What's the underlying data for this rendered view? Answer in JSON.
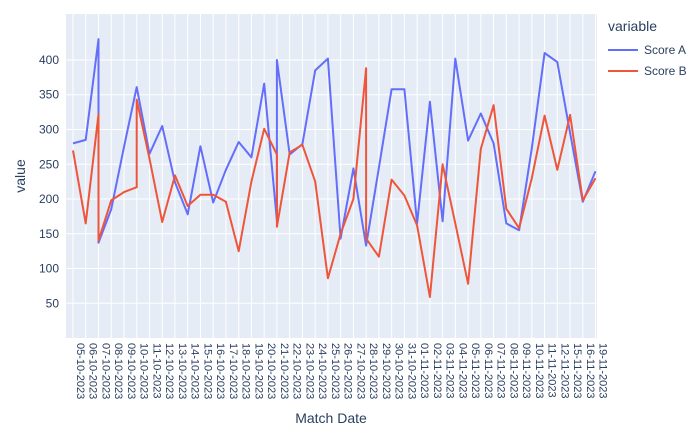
{
  "chart_data": {
    "type": "line",
    "title": "",
    "xlabel": "Match Date",
    "ylabel": "value",
    "legend_title": "variable",
    "x_categories": [
      "05-10-2023",
      "06-10-2023",
      "07-10-2023",
      "08-10-2023",
      "09-10-2023",
      "10-10-2023",
      "11-10-2023",
      "12-10-2023",
      "13-10-2023",
      "14-10-2023",
      "15-10-2023",
      "16-10-2023",
      "17-10-2023",
      "18-10-2023",
      "19-10-2023",
      "20-10-2023",
      "21-10-2023",
      "22-10-2023",
      "23-10-2023",
      "24-10-2023",
      "25-10-2023",
      "26-10-2023",
      "27-10-2023",
      "28-10-2023",
      "29-10-2023",
      "30-10-2023",
      "31-10-2023",
      "01-11-2023",
      "02-11-2023",
      "03-11-2023",
      "04-11-2023",
      "05-11-2023",
      "06-11-2023",
      "07-11-2023",
      "08-11-2023",
      "09-11-2023",
      "10-11-2023",
      "11-11-2023",
      "12-11-2023",
      "15-11-2023",
      "16-11-2023",
      "19-11-2023"
    ],
    "y_ticks": [
      50,
      100,
      150,
      200,
      250,
      300,
      350,
      400
    ],
    "ylim": [
      0,
      466
    ],
    "grid": true,
    "legend_position": "right",
    "plot_bg": "#E5ECF6",
    "grid_color": "#FFFFFF",
    "text_color": "#2a3f5f",
    "series": [
      {
        "name": "Score A",
        "color": "#636EFA",
        "points": [
          [
            "05-10-2023",
            280
          ],
          [
            "06-10-2023",
            285
          ],
          [
            "07-10-2023",
            430
          ],
          [
            "07-10-2023",
            137
          ],
          [
            "08-10-2023",
            185
          ],
          [
            "09-10-2023",
            275
          ],
          [
            "10-10-2023",
            361
          ],
          [
            "11-10-2023",
            265
          ],
          [
            "12-10-2023",
            305
          ],
          [
            "13-10-2023",
            224
          ],
          [
            "14-10-2023",
            178
          ],
          [
            "15-10-2023",
            276
          ],
          [
            "16-10-2023",
            195
          ],
          [
            "17-10-2023",
            242
          ],
          [
            "18-10-2023",
            282
          ],
          [
            "19-10-2023",
            260
          ],
          [
            "20-10-2023",
            366
          ],
          [
            "21-10-2023",
            169
          ],
          [
            "21-10-2023",
            400
          ],
          [
            "22-10-2023",
            264
          ],
          [
            "23-10-2023",
            279
          ],
          [
            "24-10-2023",
            385
          ],
          [
            "25-10-2023",
            402
          ],
          [
            "26-10-2023",
            143
          ],
          [
            "27-10-2023",
            244
          ],
          [
            "28-10-2023",
            133
          ],
          [
            "29-10-2023",
            245
          ],
          [
            "30-10-2023",
            358
          ],
          [
            "31-10-2023",
            358
          ],
          [
            "01-11-2023",
            165
          ],
          [
            "02-11-2023",
            340
          ],
          [
            "03-11-2023",
            168
          ],
          [
            "04-11-2023",
            402
          ],
          [
            "05-11-2023",
            284
          ],
          [
            "06-11-2023",
            323
          ],
          [
            "07-11-2023",
            280
          ],
          [
            "08-11-2023",
            165
          ],
          [
            "09-11-2023",
            155
          ],
          [
            "10-11-2023",
            273
          ],
          [
            "11-11-2023",
            410
          ],
          [
            "12-11-2023",
            397
          ],
          [
            "15-11-2023",
            295
          ],
          [
            "16-11-2023",
            196
          ],
          [
            "19-11-2023",
            240
          ]
        ]
      },
      {
        "name": "Score B",
        "color": "#EF553B",
        "points": [
          [
            "05-10-2023",
            270
          ],
          [
            "06-10-2023",
            165
          ],
          [
            "07-10-2023",
            322
          ],
          [
            "07-10-2023",
            140
          ],
          [
            "08-10-2023",
            198
          ],
          [
            "09-10-2023",
            210
          ],
          [
            "10-10-2023",
            217
          ],
          [
            "10-10-2023",
            343
          ],
          [
            "11-10-2023",
            258
          ],
          [
            "12-10-2023",
            167
          ],
          [
            "13-10-2023",
            234
          ],
          [
            "14-10-2023",
            190
          ],
          [
            "15-10-2023",
            206
          ],
          [
            "16-10-2023",
            206
          ],
          [
            "17-10-2023",
            196
          ],
          [
            "18-10-2023",
            125
          ],
          [
            "19-10-2023",
            225
          ],
          [
            "20-10-2023",
            301
          ],
          [
            "21-10-2023",
            264
          ],
          [
            "21-10-2023",
            160
          ],
          [
            "22-10-2023",
            267
          ],
          [
            "23-10-2023",
            278
          ],
          [
            "24-10-2023",
            225
          ],
          [
            "25-10-2023",
            86
          ],
          [
            "26-10-2023",
            150
          ],
          [
            "27-10-2023",
            200
          ],
          [
            "28-10-2023",
            388
          ],
          [
            "28-10-2023",
            143
          ],
          [
            "29-10-2023",
            117
          ],
          [
            "30-10-2023",
            228
          ],
          [
            "31-10-2023",
            205
          ],
          [
            "01-11-2023",
            162
          ],
          [
            "02-11-2023",
            59
          ],
          [
            "03-11-2023",
            250
          ],
          [
            "04-11-2023",
            165
          ],
          [
            "05-11-2023",
            78
          ],
          [
            "06-11-2023",
            272
          ],
          [
            "07-11-2023",
            335
          ],
          [
            "08-11-2023",
            186
          ],
          [
            "09-11-2023",
            158
          ],
          [
            "10-11-2023",
            230
          ],
          [
            "11-11-2023",
            320
          ],
          [
            "12-11-2023",
            242
          ],
          [
            "15-11-2023",
            321
          ],
          [
            "16-11-2023",
            198
          ],
          [
            "19-11-2023",
            230
          ]
        ]
      }
    ]
  }
}
